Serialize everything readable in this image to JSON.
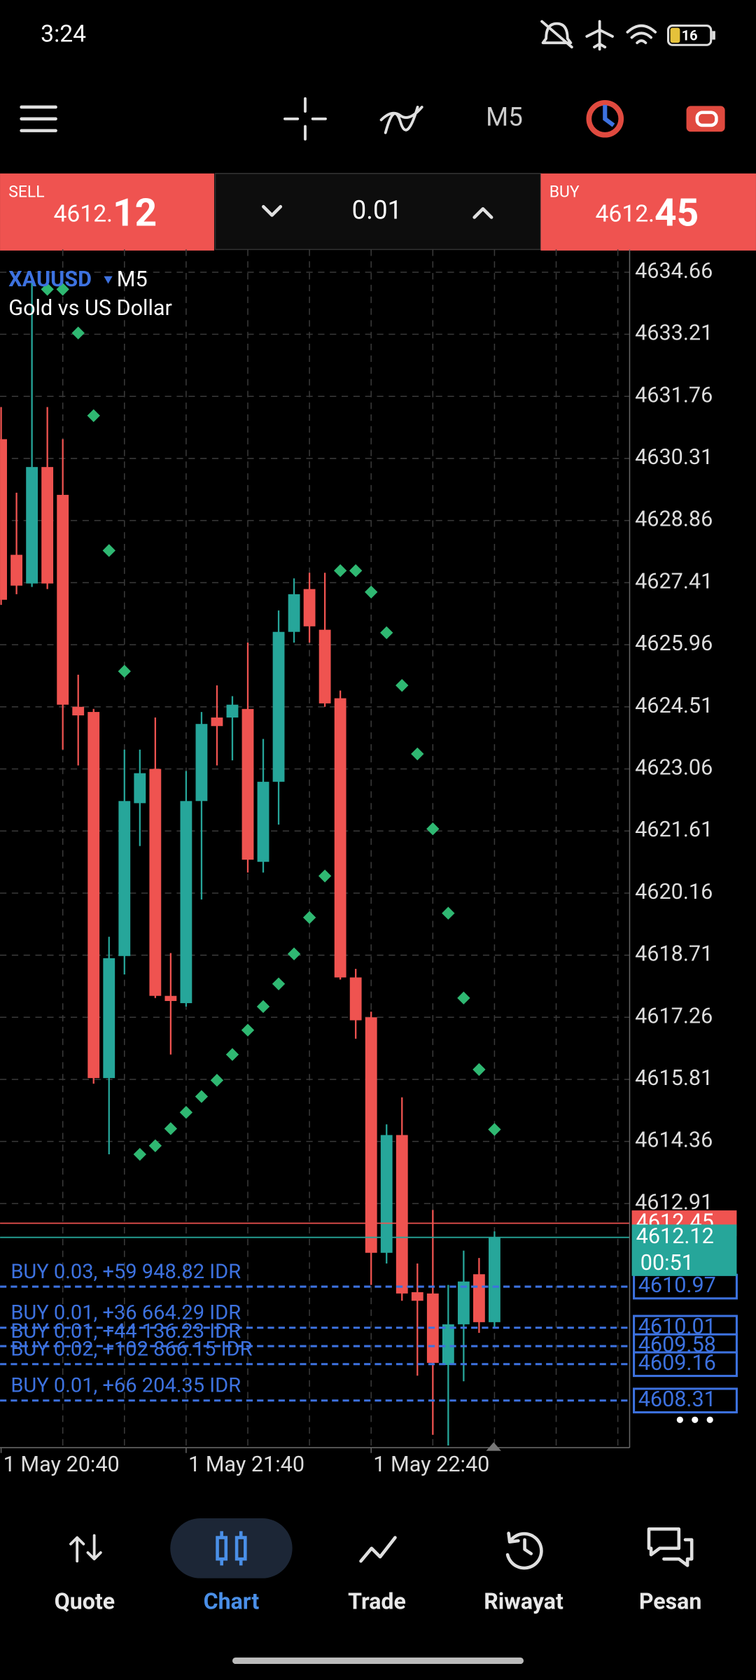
{
  "status_bar": {
    "time": "3:24",
    "battery": "16"
  },
  "toolbar": {
    "timeframe": "M5"
  },
  "trade_panel": {
    "sell_label": "SELL",
    "sell_price_main": "4612.",
    "sell_price_big": "12",
    "lot": "0.01",
    "buy_label": "BUY",
    "buy_price_main": "4612.",
    "buy_price_big": "45"
  },
  "chart_data": {
    "type": "candlestick",
    "symbol": "XAUUSD",
    "timeframe": "M5",
    "description": "Gold vs US Dollar",
    "categories": [
      "1 May 20:40",
      null,
      null,
      null,
      null,
      null,
      null,
      null,
      null,
      null,
      null,
      null,
      "1 May 21:40",
      null,
      null,
      null,
      null,
      null,
      null,
      null,
      null,
      null,
      null,
      null,
      "1 May 22:40",
      null,
      null,
      null,
      null,
      null,
      null,
      null,
      null
    ],
    "open": [
      4630.76,
      4628.06,
      4627.39,
      4630.11,
      4629.46,
      4624.51,
      4624.39,
      4615.84,
      4618.69,
      4622.26,
      4623.06,
      4617.76,
      4617.59,
      4622.31,
      4624.26,
      4624.26,
      4624.46,
      4620.89,
      4622.76,
      4626.26,
      4627.26,
      4626.31,
      4624.71,
      4618.19,
      4617.26,
      4611.76,
      4614.51,
      4610.84,
      4610.81,
      4609.14,
      4610.09,
      4611.26,
      4610.14
    ],
    "high": [
      4631.51,
      4629.51,
      4634.46,
      4631.51,
      4630.76,
      4625.26,
      4624.46,
      4619.14,
      4623.51,
      4623.51,
      4624.26,
      4618.76,
      4623.01,
      4624.39,
      4625.01,
      4624.76,
      4626.01,
      4623.76,
      4626.76,
      4627.51,
      4627.64,
      4627.64,
      4624.89,
      4618.39,
      4617.39,
      4614.76,
      4615.39,
      4611.51,
      4612.76,
      4611.01,
      4611.81,
      4611.64,
      4612.26
    ],
    "low": [
      4626.89,
      4627.14,
      4627.31,
      4627.26,
      4623.51,
      4623.14,
      4615.71,
      4614.06,
      4618.26,
      4621.26,
      4617.71,
      4616.39,
      4617.51,
      4620.01,
      4623.14,
      4623.26,
      4620.64,
      4620.64,
      4621.76,
      4626.01,
      4626.01,
      4624.51,
      4618.14,
      4616.76,
      4611.01,
      4611.51,
      4610.64,
      4608.89,
      4607.51,
      4607.26,
      4608.76,
      4609.89,
      4610.01
    ],
    "close": [
      4627.01,
      4627.34,
      4630.11,
      4627.39,
      4624.56,
      4624.31,
      4615.84,
      4618.64,
      4622.31,
      4622.96,
      4617.76,
      4617.64,
      4622.31,
      4624.11,
      4624.06,
      4624.56,
      4620.94,
      4622.76,
      4626.26,
      4627.14,
      4626.39,
      4624.59,
      4618.19,
      4617.19,
      4611.76,
      4614.51,
      4610.81,
      4610.64,
      4609.19,
      4610.09,
      4611.09,
      4610.14,
      4612.12
    ],
    "up_color": "#26a69a",
    "down_color": "#ef5350",
    "parabolic_sar": {
      "color": "#2fb872",
      "values": [
        null,
        null,
        null,
        4634.26,
        4634.26,
        4633.24,
        4631.31,
        4628.16,
        4625.34,
        4614.06,
        4614.26,
        4614.66,
        4615.04,
        4615.41,
        4615.79,
        4616.39,
        4616.96,
        4617.51,
        4618.04,
        4618.74,
        4619.59,
        4620.56,
        4627.69,
        4627.69,
        4627.19,
        4626.24,
        4625.01,
        4623.41,
        4621.66,
        4619.69,
        4617.71,
        4616.04,
        4614.64
      ]
    },
    "ylim": [
      4607.21,
      4635.19
    ],
    "yticks": [
      4634.66,
      4633.21,
      4631.76,
      4630.31,
      4628.86,
      4627.41,
      4625.96,
      4624.51,
      4623.06,
      4621.61,
      4620.16,
      4618.71,
      4617.26,
      4615.81,
      4614.36,
      4612.91
    ],
    "grid": true,
    "ask_line": {
      "value": 4612.45,
      "color": "#ef5350"
    },
    "bid_line": {
      "value": 4612.12,
      "timer": "00:51",
      "color": "#26a69a"
    },
    "orders": {
      "color": "#3d72e0",
      "items": [
        {
          "label": "BUY 0.03, +59 948.82 IDR",
          "value": 4610.97
        },
        {
          "label": "BUY 0.01, +36 664.29 IDR",
          "value": 4610.01
        },
        {
          "label": "BUY 0.01, +44 136.23 IDR",
          "value": 4609.58
        },
        {
          "label": "BUY 0.02, +102 866.15 IDR",
          "value": 4609.16
        },
        {
          "label": "BUY 0.01, +66 204.35 IDR",
          "value": 4608.31
        }
      ]
    }
  },
  "bottom_nav": {
    "items": [
      "Quote",
      "Chart",
      "Trade",
      "Riwayat",
      "Pesan"
    ],
    "active": 1
  }
}
